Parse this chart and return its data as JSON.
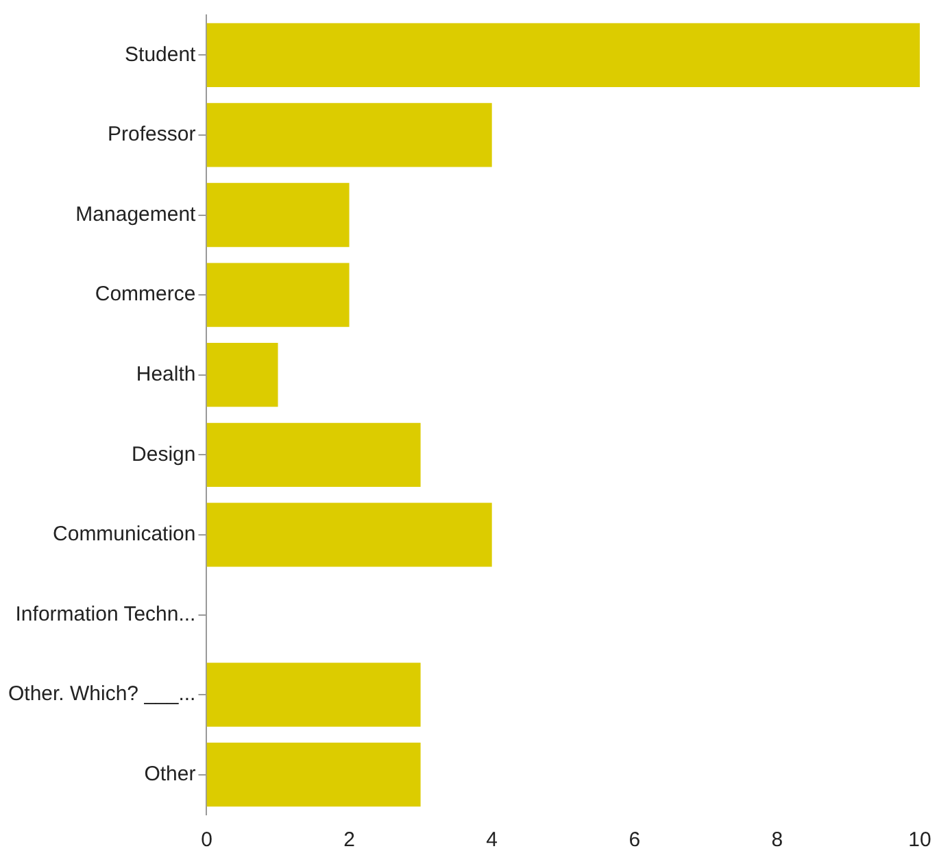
{
  "chart_data": {
    "type": "bar",
    "orientation": "horizontal",
    "categories": [
      "Student",
      "Professor",
      "Management",
      "Commerce",
      "Health",
      "Design",
      "Communication",
      "Information Techn...",
      "Other. Which? ___...",
      "Other"
    ],
    "values": [
      10,
      4,
      2,
      2,
      1,
      3,
      4,
      0,
      3,
      3
    ],
    "color": "#dccc00",
    "xlim": [
      0,
      10
    ],
    "xticks": [
      0,
      2,
      4,
      6,
      8,
      10
    ],
    "grid": false,
    "legend": false
  }
}
